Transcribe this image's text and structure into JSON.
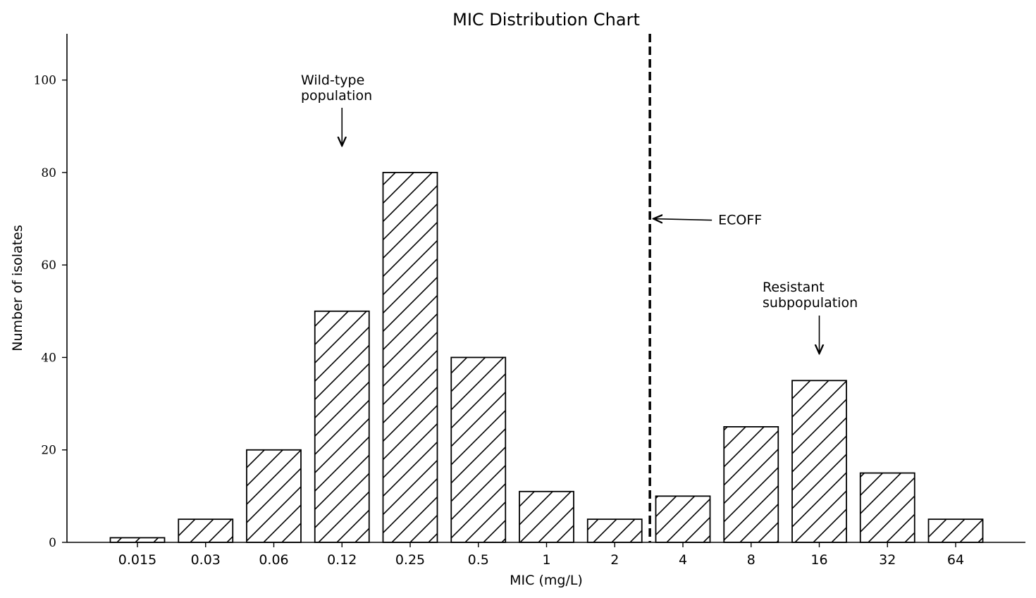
{
  "chart_data": {
    "type": "bar",
    "title": "MIC Distribution Chart",
    "xlabel": "MIC (mg/L)",
    "ylabel": "Number of isolates",
    "categories": [
      "0.015",
      "0.03",
      "0.06",
      "0.12",
      "0.25",
      "0.5",
      "1",
      "2",
      "4",
      "8",
      "16",
      "32",
      "64"
    ],
    "values": [
      1,
      5,
      20,
      50,
      80,
      40,
      11,
      5,
      10,
      25,
      35,
      15,
      5
    ],
    "ylim": [
      0,
      110
    ],
    "yticks": [
      0,
      20,
      40,
      60,
      80,
      100
    ],
    "bar_fill": "#ffffff",
    "bar_edge": "#000000",
    "hatch": "diagonal",
    "grid": false,
    "ecoff": {
      "label": "ECOFF",
      "between_categories": [
        "2",
        "4"
      ],
      "line_style": "dashed",
      "color": "#000000"
    },
    "annotations": [
      {
        "lines": [
          "Wild-type",
          "population"
        ],
        "target_category": "0.12"
      },
      {
        "lines": [
          "Resistant",
          "subpopulation"
        ],
        "target_category": "16"
      }
    ]
  }
}
